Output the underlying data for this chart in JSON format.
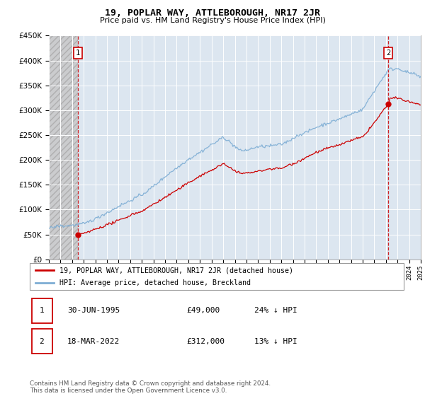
{
  "title": "19, POPLAR WAY, ATTLEBOROUGH, NR17 2JR",
  "subtitle": "Price paid vs. HM Land Registry's House Price Index (HPI)",
  "legend_line1": "19, POPLAR WAY, ATTLEBOROUGH, NR17 2JR (detached house)",
  "legend_line2": "HPI: Average price, detached house, Breckland",
  "footnote": "Contains HM Land Registry data © Crown copyright and database right 2024.\nThis data is licensed under the Open Government Licence v3.0.",
  "bg_color": "#dce6f0",
  "line_red": "#cc0000",
  "line_blue": "#7dadd4",
  "t1": 1995.5,
  "t2": 2022.21,
  "p1": 49000,
  "p2": 312000,
  "hpi_scale": 0.76,
  "ylim": [
    0,
    450000
  ],
  "yticks": [
    0,
    50000,
    100000,
    150000,
    200000,
    250000,
    300000,
    350000,
    400000,
    450000
  ],
  "xmin": 1993,
  "xmax": 2025
}
